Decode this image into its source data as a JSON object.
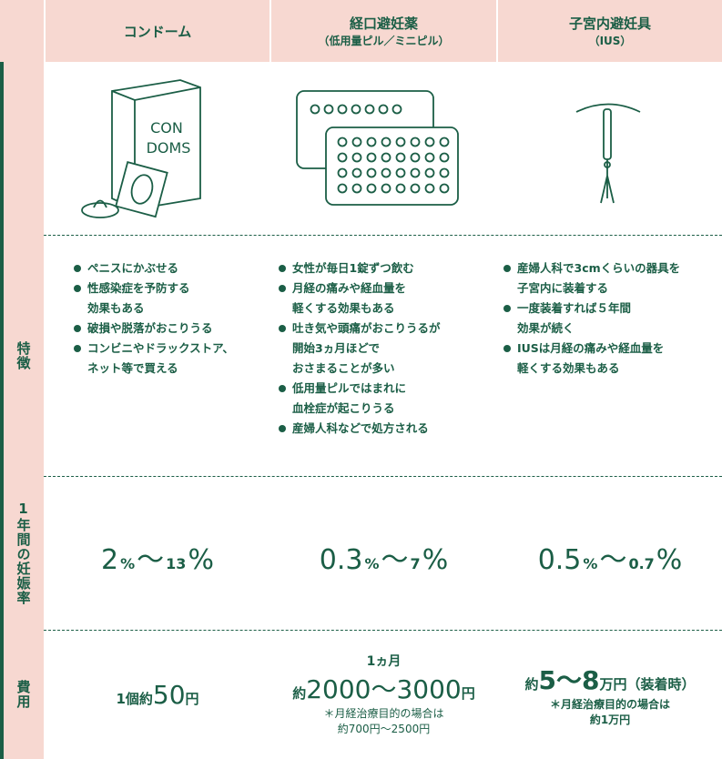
{
  "header": {
    "columns": [
      {
        "title": "コンドーム"
      },
      {
        "title": "経口避妊薬",
        "subtitle": "（低用量ピル／ミニピル）"
      },
      {
        "title": "子宮内避妊具",
        "subtitle": "（IUS）"
      }
    ]
  },
  "illustration": {
    "box_text": [
      "CON",
      "DOMS"
    ]
  },
  "features": {
    "label": "特徴",
    "columns": [
      [
        [
          "ペニスにかぶせる"
        ],
        [
          "性感染症を予防する",
          "効果もある"
        ],
        [
          "破損や脱落がおこりうる"
        ],
        [
          "コンビニやドラックストア、",
          "ネット等で買える"
        ]
      ],
      [
        [
          "女性が毎日1錠ずつ飲む"
        ],
        [
          "月経の痛みや経血量を",
          "軽くする効果もある"
        ],
        [
          "吐き気や頭痛がおこりうるが",
          "開始3ヵ月ほどで",
          "おさまることが多い"
        ],
        [
          "低用量ピルではまれに",
          "血栓症が起こりうる"
        ],
        [
          "産婦人科などで処方される"
        ]
      ],
      [
        [
          "産婦人科で3cmくらいの器具を",
          "子宮内に装着する"
        ],
        [
          "一度装着すれば５年間",
          "効果が続く"
        ],
        [
          "IUSは月経の痛みや経血量を",
          "軽くする効果もある"
        ]
      ]
    ]
  },
  "pregnancy_rate": {
    "label": "1年間の妊娠率",
    "columns": [
      [
        "2",
        "%",
        "～",
        "13",
        "%"
      ],
      [
        "0.3",
        "%",
        "～",
        "7",
        "%"
      ],
      [
        "0.5",
        "%",
        "～",
        "0.7",
        "%"
      ]
    ]
  },
  "cost": {
    "label": "費用",
    "condom": [
      "1個約",
      "50",
      "円"
    ],
    "pill": {
      "top": "1ヵ月",
      "main": [
        "約",
        "2000～3000",
        "円"
      ],
      "note": [
        "＊月経治療目的の場合は",
        "約700円～2500円"
      ]
    },
    "ius": {
      "main": [
        "約",
        "5～8",
        "万円（装着時）"
      ],
      "note": [
        "＊月経治療目的の場合は",
        "約1万円"
      ]
    }
  }
}
